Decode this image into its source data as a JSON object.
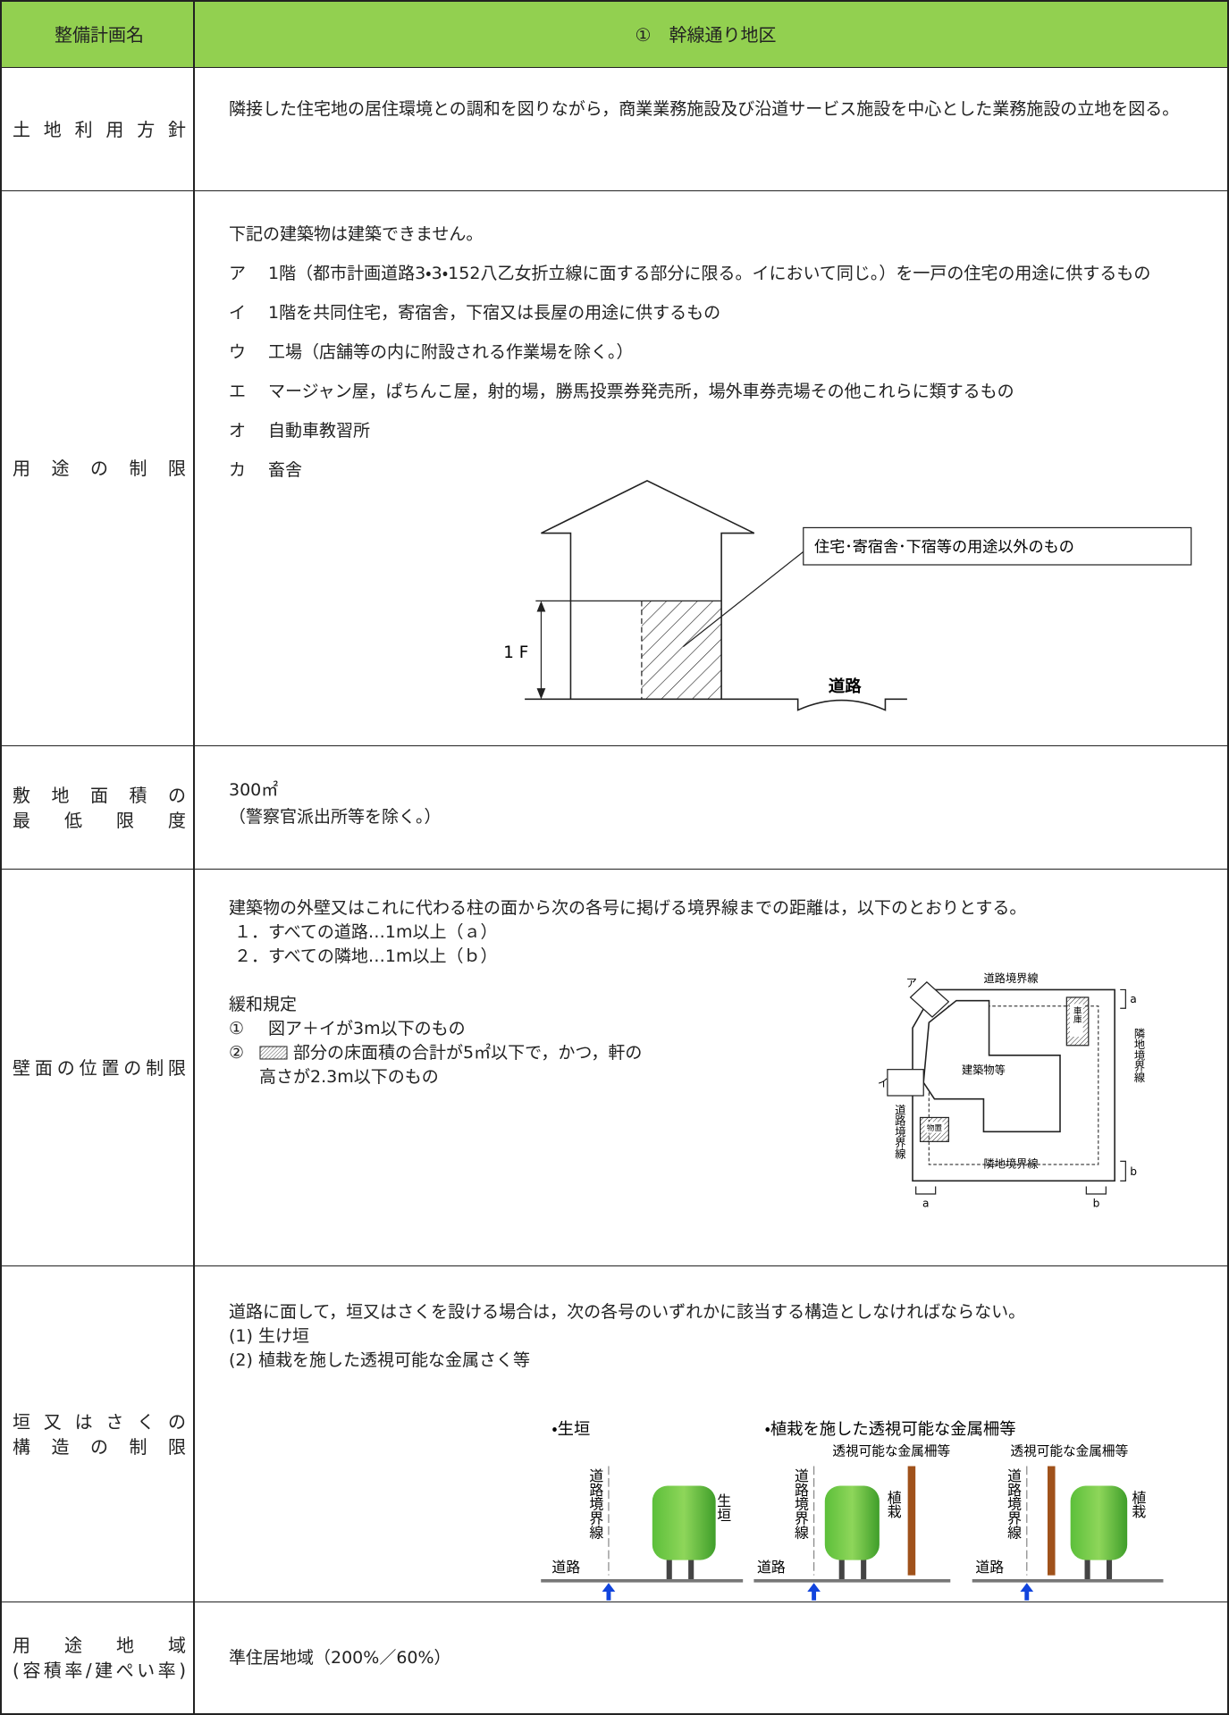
{
  "header": {
    "label": "整備計画名",
    "title": "①　幹線通り地区"
  },
  "rows": [
    {
      "label": [
        "土地利用方針"
      ],
      "text": "隣接した住宅地の居住環境との調和を図りながら，商業業務施設及び沿道サービス施設を中心とした業務施設の立地を図る。"
    },
    {
      "label": [
        "用途の制限"
      ],
      "intro": "下記の建築物は建築できません。",
      "items": [
        {
          "mark": "ア",
          "text": "1階（都市計画道路3・3・152八乙女折立線に面する部分に限る。イにおいて同じ。）を一戸の住宅の用途に供するもの"
        },
        {
          "mark": "イ",
          "text": "1階を共同住宅，寄宿舎，下宿又は長屋の用途に供するもの"
        },
        {
          "mark": "ウ",
          "text": "工場（店舗等の内に附設される作業場を除く。）"
        },
        {
          "mark": "エ",
          "text": "マージャン屋，ぱちんこ屋，射的場，勝馬投票券発売所，場外車券売場その他これらに類するもの"
        },
        {
          "mark": "オ",
          "text": "自動車教習所"
        },
        {
          "mark": "カ",
          "text": "畜舎"
        }
      ],
      "figure": {
        "callout": "住宅･寄宿舎･下宿等の用途以外のもの",
        "floor": "1 F",
        "road": "道路"
      }
    },
    {
      "label": [
        "敷地面積の",
        "最低限度"
      ],
      "lines": [
        "300㎡",
        "（警察官派出所等を除く。）"
      ]
    },
    {
      "label": [
        "壁面の位置の制限"
      ],
      "text": "建築物の外壁又はこれに代わる柱の面から次の各号に掲げる境界線までの距離は，以下のとおりとする。",
      "items": [
        "１．すべての道路…1m以上（ａ）",
        "２．すべての隣地…1m以上（ｂ）"
      ],
      "relax_title": "緩和規定",
      "relax": [
        {
          "mark": "①",
          "lines": [
            "図ア＋イが3m以下のもの"
          ]
        },
        {
          "mark": "②",
          "lines": [
            "部分の床面積の合計が5㎡以下で，かつ，軒の",
            "高さが2.3m以下のもの"
          ]
        }
      ],
      "figure": {
        "road_line_top": "道路境界線",
        "a_mark": "ア",
        "i_mark": "イ",
        "garage": "車庫",
        "building": "建築物等",
        "shed": "物置",
        "neighbor_right": "隣地境界線",
        "road_line_left": "道路境界線",
        "neighbor_bottom": "隣地境界線",
        "a_right": "a",
        "b_right": "b",
        "a_bottom": "a",
        "b_bottom": "b"
      }
    },
    {
      "label": [
        "垣又はさくの",
        "構造の制限"
      ],
      "text": "道路に面して，垣又はさくを設ける場合は，次の各号のいずれかに該当する構造としなければならない。",
      "items": [
        "(1) 生け垣",
        "(2) 植栽を施した透視可能な金属さく等"
      ],
      "figure": {
        "hedge_title": "・生垣",
        "fence_title": "・植栽を施した透視可能な金属柵等",
        "fence_label_1": "透視可能な金属柵等",
        "fence_label_2": "透視可能な金属柵等",
        "boundary_1": "道路境界線",
        "boundary_2": "道路境界線",
        "boundary_3": "道路境界線",
        "hedge": "生垣",
        "planting_1": "植栽",
        "planting_2": "植栽",
        "road_1": "道路",
        "road_2": "道路",
        "road_3": "道路"
      }
    },
    {
      "label": [
        "用途地域",
        "(容積率/建ぺい率)"
      ],
      "text": "準住居地域（200%／60%）"
    }
  ]
}
